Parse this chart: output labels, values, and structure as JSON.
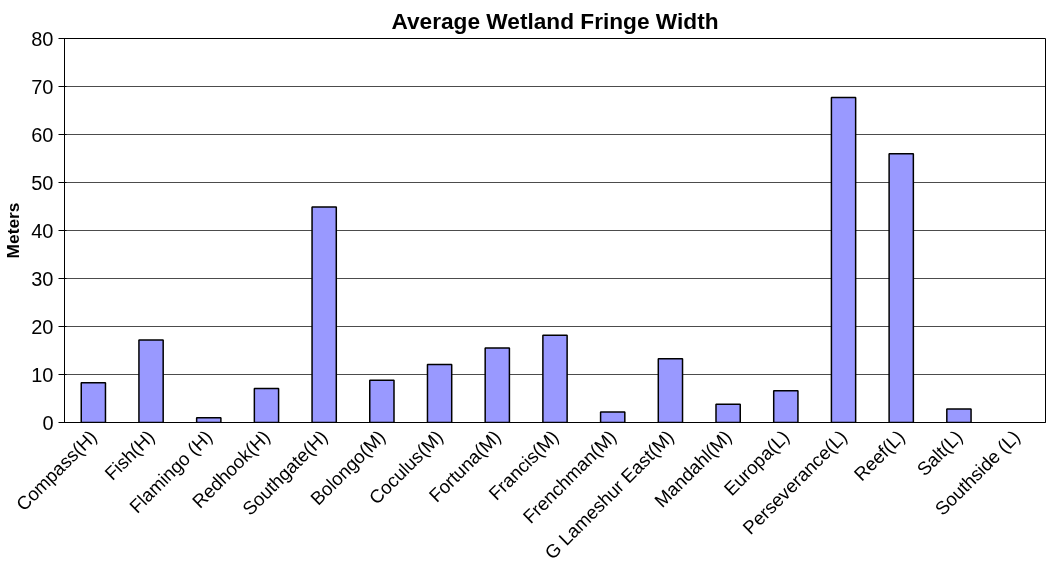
{
  "chart_data": {
    "type": "bar",
    "title": "Average Wetland Fringe Width",
    "ylabel": "Meters",
    "categories": [
      "Compass(H)",
      "Fish(H)",
      "Flamingo (H)",
      "Redhook(H)",
      "Southgate(H)",
      "Bolongo(M)",
      "Coculus(M)",
      "Fortuna(M)",
      "Francis(M)",
      "Frenchman(M)",
      "G Lameshur East(M)",
      "Mandahl(M)",
      "Europa(L)",
      "Perseverance(L)",
      "Reef(L)",
      "Salt(L)",
      "Southside (L)"
    ],
    "values": [
      8.3,
      17.2,
      1.0,
      7.1,
      44.9,
      8.8,
      12.1,
      15.5,
      18.2,
      2.2,
      13.3,
      3.8,
      6.6,
      67.7,
      56.0,
      2.8,
      0
    ],
    "color": "#9999ff",
    "ylim": [
      0,
      80
    ],
    "yticks": [
      0,
      10,
      20,
      30,
      40,
      50,
      60,
      70,
      80
    ],
    "grid": "y"
  }
}
